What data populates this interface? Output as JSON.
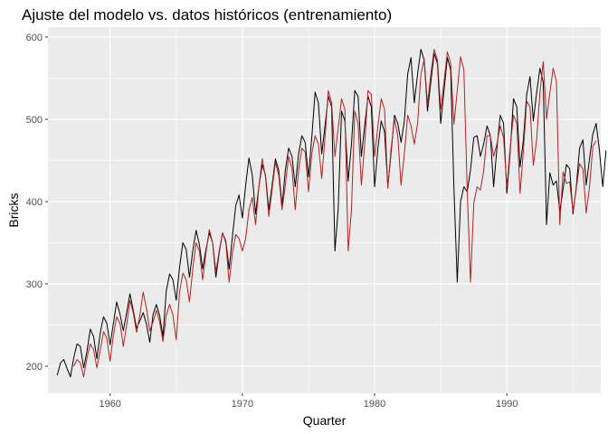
{
  "chart_data": {
    "type": "line",
    "title": "Ajuste del modelo vs. datos históricos (entrenamiento)",
    "xlabel": "Quarter",
    "ylabel": "Bricks",
    "x_ticks": [
      1960,
      1970,
      1980,
      1990
    ],
    "y_ticks": [
      200,
      300,
      400,
      500,
      600
    ],
    "xlim": [
      1955.3,
      1997.1
    ],
    "ylim": [
      167,
      612
    ],
    "grid": true,
    "legend": "none",
    "x_start": 1956.0,
    "x_step": 0.25,
    "series": [
      {
        "color": "#000000",
        "values": [
          189,
          204,
          208,
          197,
          187,
          210,
          227,
          224,
          198,
          218,
          245,
          236,
          209,
          240,
          260,
          252,
          226,
          252,
          278,
          263,
          243,
          265,
          288,
          268,
          246,
          255,
          265,
          251,
          229,
          263,
          275,
          261,
          236,
          292,
          312,
          305,
          280,
          320,
          350,
          342,
          308,
          340,
          365,
          348,
          318,
          342,
          362,
          350,
          308,
          338,
          362,
          352,
          318,
          358,
          395,
          408,
          380,
          420,
          453,
          432,
          385,
          418,
          445,
          432,
          390,
          420,
          452,
          438,
          395,
          438,
          465,
          455,
          418,
          458,
          480,
          472,
          430,
          478,
          533,
          520,
          458,
          492,
          528,
          515,
          340,
          392,
          510,
          498,
          425,
          470,
          535,
          528,
          455,
          492,
          528,
          515,
          418,
          465,
          498,
          485,
          418,
          460,
          505,
          495,
          472,
          498,
          555,
          575,
          520,
          555,
          585,
          572,
          510,
          545,
          580,
          568,
          495,
          535,
          575,
          560,
          415,
          302,
          400,
          418,
          412,
          438,
          478,
          480,
          455,
          470,
          492,
          480,
          418,
          465,
          505,
          495,
          410,
          460,
          525,
          515,
          442,
          475,
          530,
          552,
          498,
          532,
          562,
          545,
          372,
          435,
          420,
          425,
          388,
          415,
          445,
          440,
          385,
          418,
          465,
          475,
          420,
          452,
          482,
          495,
          462,
          418,
          462
        ]
      },
      {
        "color": "#b22222",
        "values": [
          null,
          null,
          null,
          null,
          null,
          200,
          208,
          204,
          187,
          210,
          227,
          220,
          198,
          219,
          242,
          234,
          206,
          238,
          260,
          252,
          224,
          250,
          280,
          265,
          241,
          262,
          290,
          270,
          243,
          254,
          268,
          253,
          230,
          262,
          275,
          262,
          232,
          290,
          313,
          305,
          278,
          318,
          350,
          340,
          305,
          338,
          366,
          350,
          315,
          340,
          362,
          350,
          302,
          338,
          360,
          355,
          340,
          355,
          390,
          405,
          372,
          418,
          452,
          430,
          382,
          415,
          448,
          432,
          390,
          420,
          455,
          440,
          390,
          438,
          465,
          460,
          412,
          458,
          480,
          470,
          428,
          478,
          535,
          520,
          455,
          490,
          525,
          512,
          340,
          390,
          510,
          495,
          420,
          470,
          535,
          530,
          455,
          492,
          525,
          512,
          416,
          465,
          500,
          480,
          420,
          458,
          505,
          492,
          470,
          495,
          555,
          573,
          518,
          555,
          585,
          572,
          512,
          546,
          582,
          568,
          494,
          535,
          576,
          560,
          415,
          302,
          398,
          418,
          414,
          438,
          480,
          480,
          455,
          470,
          492,
          478,
          418,
          465,
          505,
          495,
          410,
          462,
          522,
          515,
          444,
          475,
          532,
          570,
          500,
          532,
          562,
          546,
          372,
          436,
          422,
          424,
          388,
          416,
          446,
          440,
          386,
          418,
          467,
          474
        ]
      }
    ]
  }
}
